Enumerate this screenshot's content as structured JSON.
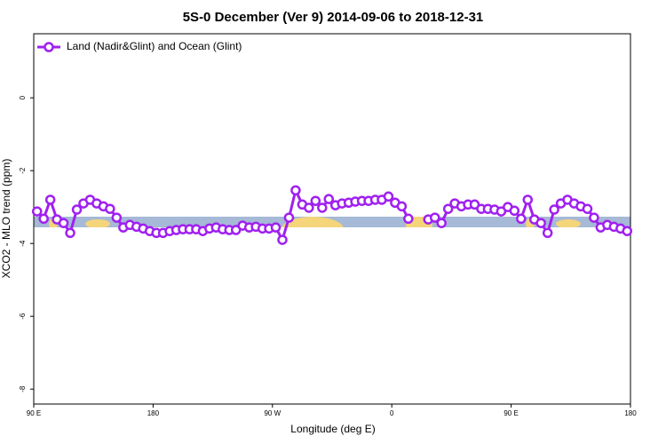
{
  "chart_data": {
    "type": "line",
    "title": "5S-0 December (Ver 9)   2014-09-06 to 2018-12-31",
    "x_label": "Longitude (deg E)",
    "y_label": "XCO2 - MLO trend (ppm)",
    "xlim": [
      90,
      540
    ],
    "ylim": [
      -8.41,
      1.76
    ],
    "xticks": [
      {
        "value": 90,
        "label": "90 E"
      },
      180,
      {
        "value": 270,
        "label": "90 W"
      },
      {
        "value": 360,
        "label": "0"
      },
      {
        "value": 450,
        "label": "90 E"
      },
      {
        "value": 540,
        "label": "180"
      }
    ],
    "yticks": [
      0,
      -2,
      -4,
      -6,
      -8
    ],
    "legend": "top-left",
    "x": [
      92.5,
      97.5,
      102.5,
      107.5,
      112.5,
      117.5,
      122.5,
      127.5,
      132.5,
      137.5,
      142.5,
      147.5,
      152.5,
      157.5,
      162.5,
      167.5,
      172.5,
      177.5,
      182.5,
      187.5,
      192.5,
      197.5,
      202.5,
      207.5,
      212.5,
      217.5,
      222.5,
      227.5,
      232.5,
      237.5,
      242.5,
      247.5,
      252.5,
      257.5,
      262.5,
      267.5,
      272.5,
      277.5,
      282.5,
      287.5,
      292.5,
      297.5,
      302.5,
      307.5,
      312.5,
      317.5,
      322.5,
      327.5,
      332.5,
      337.5,
      342.5,
      347.5,
      352.5,
      357.5,
      362.5,
      367.5,
      372.5,
      377.5,
      382.5,
      387.5,
      392.5,
      397.5,
      402.5,
      407.5,
      412.5,
      417.5,
      422.5,
      427.5,
      432.5,
      437.5,
      442.5,
      447.5,
      452.5,
      457.5,
      462.5,
      467.5,
      472.5,
      477.5,
      482.5,
      487.5,
      492.5,
      497.5,
      502.5,
      507.5,
      512.5,
      517.5,
      522.5,
      527.5,
      532.5,
      537.5
    ],
    "series": [
      {
        "name": "Land (Nadir&Glint) and Ocean (Glint)",
        "color": "#a020f0",
        "values": [
          -3.12,
          -3.32,
          -2.8,
          -3.34,
          -3.44,
          -3.71,
          -3.07,
          -2.9,
          -2.8,
          -2.9,
          -2.98,
          -3.05,
          -3.29,
          -3.56,
          -3.49,
          -3.54,
          -3.59,
          -3.66,
          -3.71,
          -3.71,
          -3.66,
          -3.63,
          -3.61,
          -3.61,
          -3.61,
          -3.66,
          -3.59,
          -3.56,
          -3.61,
          -3.63,
          -3.63,
          -3.51,
          -3.56,
          -3.54,
          -3.59,
          -3.59,
          -3.56,
          -3.9,
          -3.29,
          -2.54,
          -2.93,
          -3.02,
          -2.83,
          -3.02,
          -2.78,
          -2.95,
          -2.9,
          -2.88,
          -2.85,
          -2.83,
          -2.83,
          -2.8,
          -2.8,
          -2.71,
          -2.88,
          -2.98,
          -3.32,
          null,
          null,
          -3.34,
          -3.29,
          -3.44,
          -3.05,
          -2.9,
          -2.98,
          -2.93,
          -2.93,
          -3.05,
          -3.05,
          -3.07,
          -3.12,
          -3.0,
          -3.1,
          -3.32,
          -2.8,
          -3.34,
          -3.44,
          -3.71,
          -3.07,
          -2.9,
          -2.8,
          -2.9,
          -2.98,
          -3.05,
          -3.29,
          -3.56,
          -3.49,
          -3.54,
          -3.59,
          -3.66
        ]
      }
    ]
  }
}
